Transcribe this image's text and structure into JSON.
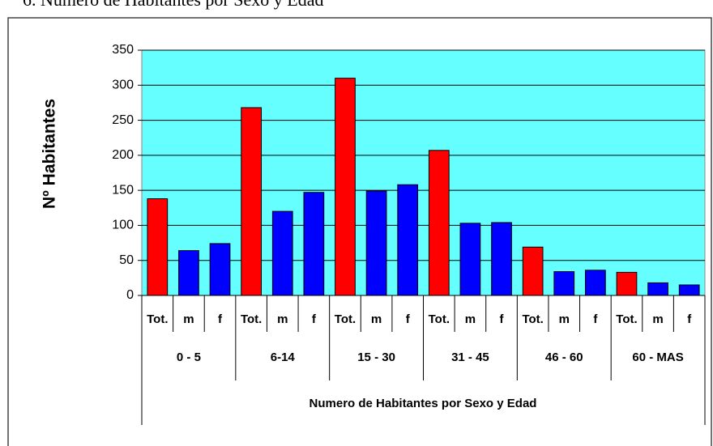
{
  "chart_data": {
    "type": "bar",
    "title": "6. Número de Habitantes por Sexo y Edad",
    "y_label": "Nº Habitantes",
    "x_label": "Numero de Habitantes por Sexo y Edad",
    "groups": [
      "0 - 5",
      "6-14",
      "15 - 30",
      "31 - 45",
      "46 - 60",
      "60 - MAS"
    ],
    "categories": [
      "Tot.",
      "m",
      "f",
      "Tot.",
      "m",
      "f",
      "Tot.",
      "m",
      "f",
      "Tot.",
      "m",
      "f",
      "Tot.",
      "m",
      "f",
      "Tot.",
      "m",
      "f"
    ],
    "values": [
      138,
      64,
      74,
      268,
      120,
      147,
      310,
      149,
      158,
      207,
      103,
      104,
      69,
      34,
      36,
      33,
      18,
      15
    ],
    "colors": [
      "#ff0000",
      "#0000ff",
      "#0000ff",
      "#ff0000",
      "#0000ff",
      "#0000ff",
      "#ff0000",
      "#0000ff",
      "#0000ff",
      "#ff0000",
      "#0000ff",
      "#0000ff",
      "#ff0000",
      "#0000ff",
      "#0000ff",
      "#ff0000",
      "#0000ff",
      "#0000ff"
    ],
    "plot_background": "#66ffff",
    "ylim": [
      0,
      350
    ],
    "yticks": [
      0,
      50,
      100,
      150,
      200,
      250,
      300,
      350
    ],
    "grid": true
  }
}
